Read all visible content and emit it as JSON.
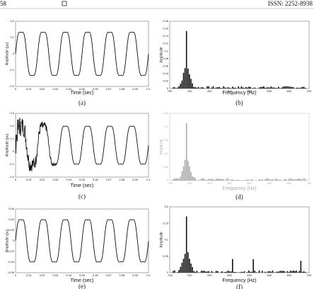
{
  "header": {
    "page": "58",
    "issn": "ISSN: 2252-8938"
  },
  "figures": [
    {
      "caption": "(a)",
      "x_label": "Time (sec)",
      "y_label": "Amplitude (pu)",
      "x_ticks": [
        "0",
        "0.01",
        "0.02",
        "0.03",
        "0.04",
        "0.05",
        "0.06",
        "0.07",
        "0.08",
        "0.09",
        "0.1"
      ],
      "y_ticks": [
        "0.2",
        "0.1",
        "0",
        "-0.1",
        "-0.2"
      ]
    },
    {
      "caption": "(b)",
      "x_label": "Frequency (Hz)",
      "y_label": "Amplitude",
      "x_ticks": [
        "700",
        "100",
        "200",
        "300",
        "400",
        "500",
        "600",
        "700"
      ],
      "y_ticks": [
        "0.18",
        "0.16",
        "0.14",
        "0.12",
        "0.1",
        "0.08",
        "0.06",
        "0.04",
        "0.02",
        "0"
      ]
    },
    {
      "caption": "(c)",
      "x_label": "Time (sec)",
      "y_label": "Amplitude (pu)",
      "x_ticks": [
        "0",
        "0.01",
        "0.02",
        "0.03",
        "0.04",
        "0.05",
        "0.06",
        "0.07",
        "0.08",
        "0.09",
        "0.1"
      ],
      "y_ticks": [
        "0.3",
        "0.2",
        "0.1",
        "0",
        "-0.1",
        "-0.2"
      ]
    },
    {
      "caption": "(d)",
      "x_label": "Frequency (Hz)",
      "y_label": "Amplitude",
      "x_ticks": [
        "-700",
        "100",
        "200",
        "300",
        "400",
        "500",
        "600",
        "700"
      ],
      "y_ticks": [
        "0.25",
        "0.2",
        "0.15",
        "0.1",
        "0.05",
        "0"
      ]
    },
    {
      "caption": "(e)",
      "x_label": "Time (sec)",
      "y_label": "Amplitude (pu)",
      "x_ticks": [
        "0",
        "0.01",
        "0.02",
        "0.03",
        "0.04",
        "0.05",
        "0.06",
        "0.07",
        "0.08",
        "0.09",
        "0.1"
      ],
      "y_ticks": [
        "0.06",
        "0.04",
        "0.02",
        "0",
        "-0.02",
        "-0.04",
        "-0.06"
      ]
    },
    {
      "caption": "(f)",
      "x_label": "Frequency (Hz)",
      "y_label": "Amplitude",
      "x_ticks": [
        "-700",
        "100",
        "200",
        "300",
        "400",
        "500",
        "600",
        "700"
      ],
      "y_ticks": [
        "0.2",
        "0.15",
        "0.1",
        "0.05",
        "0"
      ]
    }
  ]
}
